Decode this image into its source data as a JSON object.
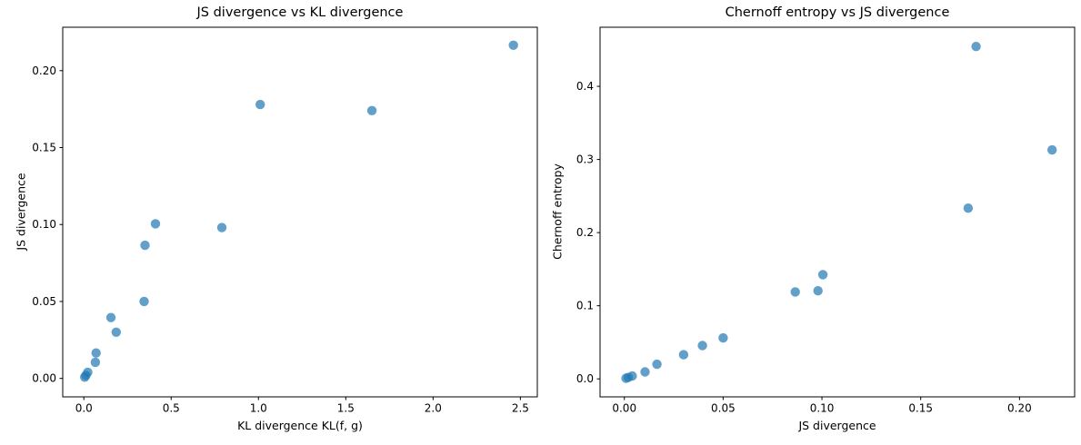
{
  "figure": {
    "background": "#ffffff",
    "accent_color": "#1f77b4",
    "spine_color": "#000000"
  },
  "chart_data": [
    {
      "type": "scatter",
      "title": "JS divergence vs KL divergence",
      "xlabel": "KL divergence KL(f, g)",
      "ylabel": "JS divergence",
      "x": [
        0.005,
        0.012,
        0.022,
        0.066,
        0.07,
        0.155,
        0.185,
        0.345,
        0.35,
        0.41,
        0.79,
        1.01,
        1.65,
        2.46
      ],
      "y": [
        0.0008,
        0.002,
        0.004,
        0.0105,
        0.0165,
        0.0395,
        0.03,
        0.05,
        0.0865,
        0.1005,
        0.098,
        0.178,
        0.174,
        0.2165
      ],
      "xlim": [
        -0.121,
        2.597
      ],
      "ylim": [
        -0.012,
        0.2282
      ],
      "xticks": [
        0.0,
        0.5,
        1.0,
        1.5,
        2.0,
        2.5
      ],
      "xtick_labels": [
        "0.0",
        "0.5",
        "1.0",
        "1.5",
        "2.0",
        "2.5"
      ],
      "yticks": [
        0.0,
        0.05,
        0.1,
        0.15,
        0.2
      ],
      "ytick_labels": [
        "0.00",
        "0.05",
        "0.10",
        "0.15",
        "0.20"
      ],
      "grid": false,
      "legend": null,
      "marker": {
        "color": "#1f77b4",
        "alpha": 0.7,
        "radius_px": 5.2
      }
    },
    {
      "type": "scatter",
      "title": "Chernoff entropy vs JS divergence",
      "xlabel": "JS divergence",
      "ylabel": "Chernoff entropy",
      "x": [
        0.0008,
        0.002,
        0.004,
        0.0105,
        0.0165,
        0.03,
        0.0395,
        0.05,
        0.0865,
        0.098,
        0.1005,
        0.174,
        0.178,
        0.2165
      ],
      "y": [
        0.0008,
        0.002,
        0.004,
        0.0095,
        0.02,
        0.033,
        0.0455,
        0.056,
        0.119,
        0.1205,
        0.1425,
        0.2335,
        0.4545,
        0.313
      ],
      "xlim": [
        -0.0123,
        0.2279
      ],
      "ylim": [
        -0.0246,
        0.4808
      ],
      "xticks": [
        0.0,
        0.05,
        0.1,
        0.15,
        0.2
      ],
      "xtick_labels": [
        "0.00",
        "0.05",
        "0.10",
        "0.15",
        "0.20"
      ],
      "yticks": [
        0.0,
        0.1,
        0.2,
        0.3,
        0.4
      ],
      "ytick_labels": [
        "0.0",
        "0.1",
        "0.2",
        "0.3",
        "0.4"
      ],
      "grid": false,
      "legend": null,
      "marker": {
        "color": "#1f77b4",
        "alpha": 0.7,
        "radius_px": 5.2
      }
    }
  ]
}
